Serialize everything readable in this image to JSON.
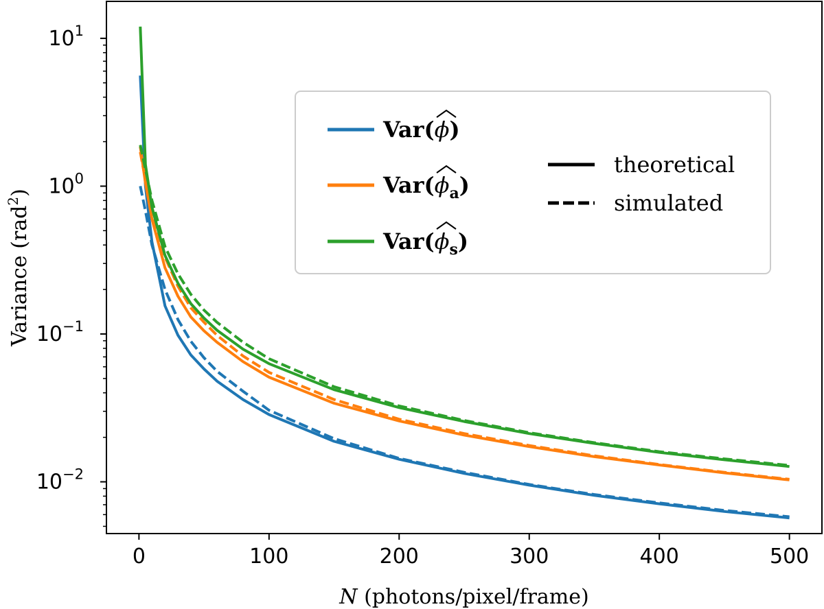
{
  "chart_data": {
    "type": "line",
    "title": "",
    "xlabel": "N (photons/pixel/frame)",
    "xlabel_var": "N",
    "xlabel_rest": " (photons/pixel/frame)",
    "ylabel": "Variance (rad²)",
    "ylabel_main": "Variance (rad",
    "ylabel_sup": "2",
    "ylabel_close": ")",
    "xlim": [
      -25,
      525
    ],
    "ylim_log10": [
      -2.35,
      1.25
    ],
    "yscale": "log",
    "x_ticks": [
      0,
      100,
      200,
      300,
      400,
      500
    ],
    "x_tick_labels": [
      "0",
      "100",
      "200",
      "300",
      "400",
      "500"
    ],
    "y_ticks": [
      {
        "exp": 1,
        "base": "10",
        "sup": "1"
      },
      {
        "exp": 0,
        "base": "10",
        "sup": "0"
      },
      {
        "exp": -1,
        "base": "10",
        "sup": "−1"
      },
      {
        "exp": -2,
        "base": "10",
        "sup": "−2"
      }
    ],
    "legend": {
      "placement": "upper-right",
      "entries": [
        {
          "key": "var",
          "prefix": "Var(",
          "symbol": "ϕ",
          "subscript": "",
          "suffix": ")",
          "color": "#1f77b4"
        },
        {
          "key": "var_a",
          "prefix": "Var(",
          "symbol": "ϕ",
          "subscript": "a",
          "suffix": ")",
          "color": "#ff7f0e"
        },
        {
          "key": "var_s",
          "prefix": "Var(",
          "symbol": "ϕ",
          "subscript": "s",
          "suffix": ")",
          "color": "#2ca02c"
        }
      ],
      "styles": [
        {
          "label": "theoretical",
          "dash": "solid"
        },
        {
          "label": "simulated",
          "dash": "dashed"
        }
      ]
    },
    "series": [
      {
        "name": "Var(ϕ) theoretical",
        "color": "#1f77b4",
        "style": "solid",
        "x": [
          1,
          5,
          10,
          20,
          30,
          40,
          50,
          60,
          80,
          100,
          150,
          200,
          250,
          300,
          350,
          400,
          450,
          500
        ],
        "y": [
          5.6,
          1.0,
          0.42,
          0.155,
          0.098,
          0.072,
          0.058,
          0.048,
          0.036,
          0.0285,
          0.0188,
          0.0142,
          0.0114,
          0.0095,
          0.0081,
          0.0071,
          0.0063,
          0.0057
        ]
      },
      {
        "name": "Var(ϕ) simulated",
        "color": "#1f77b4",
        "style": "dashed",
        "x": [
          1,
          5,
          10,
          20,
          30,
          40,
          50,
          60,
          80,
          100,
          150,
          200,
          250,
          300,
          350,
          400,
          450,
          500
        ],
        "y": [
          1.0,
          0.68,
          0.4,
          0.2,
          0.125,
          0.089,
          0.069,
          0.056,
          0.041,
          0.0305,
          0.0196,
          0.0144,
          0.0116,
          0.0096,
          0.0082,
          0.0072,
          0.0064,
          0.0058
        ]
      },
      {
        "name": "Var(ϕa) theoretical",
        "color": "#ff7f0e",
        "style": "solid",
        "x": [
          1,
          5,
          10,
          20,
          30,
          40,
          50,
          60,
          80,
          100,
          150,
          200,
          250,
          300,
          350,
          400,
          450,
          500
        ],
        "y": [
          1.85,
          1.05,
          0.6,
          0.28,
          0.18,
          0.13,
          0.105,
          0.088,
          0.065,
          0.051,
          0.034,
          0.0258,
          0.0207,
          0.0173,
          0.0148,
          0.013,
          0.0115,
          0.0103
        ]
      },
      {
        "name": "Var(ϕa) simulated",
        "color": "#ff7f0e",
        "style": "dashed",
        "x": [
          1,
          5,
          10,
          20,
          30,
          40,
          50,
          60,
          80,
          100,
          150,
          200,
          250,
          300,
          350,
          400,
          450,
          500
        ],
        "y": [
          1.7,
          1.1,
          0.7,
          0.33,
          0.21,
          0.15,
          0.12,
          0.098,
          0.071,
          0.055,
          0.036,
          0.0265,
          0.0212,
          0.0176,
          0.015,
          0.0131,
          0.0116,
          0.0104
        ]
      },
      {
        "name": "Var(ϕs) theoretical",
        "color": "#2ca02c",
        "style": "solid",
        "x": [
          1,
          5,
          10,
          20,
          30,
          40,
          50,
          60,
          80,
          100,
          150,
          200,
          250,
          300,
          350,
          400,
          450,
          500
        ],
        "y": [
          12.0,
          1.4,
          0.72,
          0.34,
          0.22,
          0.16,
          0.128,
          0.106,
          0.079,
          0.063,
          0.042,
          0.0318,
          0.0256,
          0.0212,
          0.0182,
          0.0158,
          0.0141,
          0.0127
        ]
      },
      {
        "name": "Var(ϕs) simulated",
        "color": "#2ca02c",
        "style": "dashed",
        "x": [
          1,
          5,
          10,
          20,
          30,
          40,
          50,
          60,
          80,
          100,
          150,
          200,
          250,
          300,
          350,
          400,
          450,
          500
        ],
        "y": [
          1.9,
          1.3,
          0.8,
          0.39,
          0.255,
          0.185,
          0.145,
          0.12,
          0.088,
          0.068,
          0.044,
          0.0326,
          0.026,
          0.0215,
          0.0184,
          0.016,
          0.0143,
          0.0129
        ]
      }
    ]
  }
}
